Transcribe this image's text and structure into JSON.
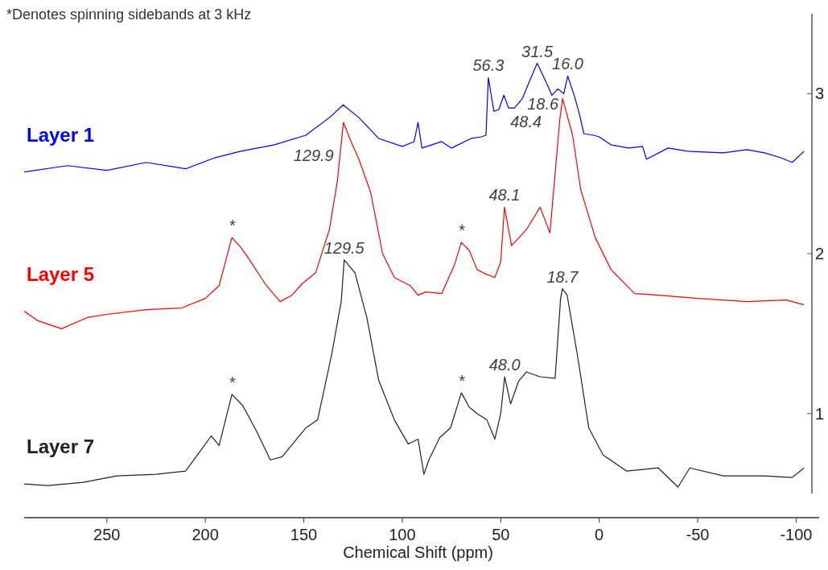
{
  "chart_data": {
    "type": "line",
    "xlabel": "Chemical Shift (ppm)",
    "xlim": [
      292,
      -108
    ],
    "xticks": [
      250,
      200,
      150,
      100,
      50,
      0,
      -50,
      -100
    ],
    "ylim": [
      0.5,
      3.5
    ],
    "yticks": [
      1,
      2,
      3
    ],
    "grid": false,
    "legend": false,
    "marker": "none",
    "line_style": "solid",
    "series": [
      {
        "name": "Layer 1",
        "color": "#0000ff",
        "x": [
          292,
          270,
          250,
          230,
          210,
          195,
          182,
          165,
          149,
          137,
          130,
          122,
          112,
          100,
          94,
          92,
          90,
          80,
          75,
          65,
          60,
          57.5,
          56.3,
          53.5,
          51,
          48.4,
          46,
          43,
          39,
          35,
          31.5,
          26.5,
          24,
          21,
          18,
          16,
          12.7,
          10,
          7.8,
          3,
          0,
          -6,
          -15,
          -22,
          -24,
          -35,
          -45,
          -63,
          -75,
          -84,
          -92,
          -98,
          -104
        ],
        "values": [
          2.51,
          2.55,
          2.52,
          2.57,
          2.53,
          2.6,
          2.64,
          2.68,
          2.74,
          2.85,
          2.93,
          2.85,
          2.72,
          2.67,
          2.7,
          2.82,
          2.66,
          2.7,
          2.66,
          2.72,
          2.73,
          2.74,
          3.1,
          2.89,
          2.9,
          2.99,
          2.91,
          2.91,
          2.97,
          3.09,
          3.19,
          3.06,
          2.99,
          3.03,
          3.0,
          3.11,
          2.99,
          2.87,
          2.75,
          2.74,
          2.73,
          2.68,
          2.66,
          2.67,
          2.59,
          2.66,
          2.64,
          2.63,
          2.65,
          2.63,
          2.6,
          2.57,
          2.64
        ]
      },
      {
        "name": "Layer 5",
        "color": "#ff0000",
        "x": [
          292,
          285,
          273,
          260,
          250,
          230,
          212,
          200,
          193,
          186.5,
          182,
          177.5,
          169,
          162,
          156,
          151,
          144,
          137,
          133,
          129.9,
          126,
          122,
          116,
          110,
          104,
          96,
          92,
          88,
          80,
          73.5,
          70,
          66,
          62,
          59,
          53,
          50,
          48.1,
          44.5,
          37,
          30,
          25,
          20,
          18.6,
          13.5,
          9.4,
          2,
          -6,
          -18,
          -30,
          -50,
          -75,
          -95,
          -104
        ],
        "values": [
          1.64,
          1.58,
          1.53,
          1.6,
          1.62,
          1.65,
          1.66,
          1.72,
          1.8,
          2.1,
          2.04,
          1.96,
          1.8,
          1.7,
          1.74,
          1.81,
          1.88,
          2.15,
          2.45,
          2.82,
          2.7,
          2.59,
          2.38,
          2.0,
          1.85,
          1.8,
          1.74,
          1.76,
          1.75,
          1.93,
          2.07,
          2.02,
          1.9,
          1.88,
          1.85,
          1.95,
          2.29,
          2.05,
          2.15,
          2.29,
          2.13,
          2.84,
          2.97,
          2.74,
          2.4,
          2.1,
          1.9,
          1.75,
          1.74,
          1.72,
          1.7,
          1.71,
          1.68
        ]
      },
      {
        "name": "Layer 7",
        "color": "#222222",
        "x": [
          292,
          280,
          262,
          245,
          225,
          210,
          197,
          193,
          186.5,
          181,
          174,
          167,
          161,
          149,
          143,
          136,
          131,
          129.5,
          124,
          118,
          112,
          104,
          97,
          92,
          89,
          86.5,
          81,
          75.5,
          70,
          66,
          62,
          57,
          53,
          50,
          48,
          45,
          41,
          37,
          30,
          22.4,
          19.6,
          18.7,
          16.3,
          11,
          5.3,
          -2,
          -14,
          -30,
          -40,
          -46,
          -63,
          -84,
          -98,
          -104
        ],
        "values": [
          0.56,
          0.55,
          0.57,
          0.61,
          0.62,
          0.64,
          0.86,
          0.8,
          1.12,
          1.05,
          0.89,
          0.71,
          0.73,
          0.91,
          0.96,
          1.36,
          1.7,
          1.96,
          1.88,
          1.6,
          1.21,
          0.96,
          0.81,
          0.84,
          0.62,
          0.71,
          0.85,
          0.91,
          1.13,
          1.04,
          1.0,
          0.96,
          0.84,
          1.0,
          1.23,
          1.06,
          1.2,
          1.26,
          1.23,
          1.22,
          1.72,
          1.78,
          1.74,
          1.36,
          0.91,
          0.74,
          0.64,
          0.66,
          0.54,
          0.66,
          0.61,
          0.61,
          0.6,
          0.66
        ]
      }
    ],
    "annotations": [
      "*Denotes spinning sidebands at 3 kHz",
      {
        "text": "56.3",
        "x": 56.3,
        "y": 3.1
      },
      {
        "text": "48.4",
        "x": 48.4,
        "y": 2.99
      },
      {
        "text": "31.5",
        "x": 31.5,
        "y": 3.19
      },
      {
        "text": "16.0",
        "x": 16,
        "y": 3.11
      },
      {
        "text": "129.9",
        "x": 129.9,
        "y": 2.82
      },
      {
        "text": "48.1",
        "x": 48.1,
        "y": 2.29
      },
      {
        "text": "18.6",
        "x": 18.6,
        "y": 2.97
      },
      {
        "text": "129.5",
        "x": 129.5,
        "y": 1.96
      },
      {
        "text": "48.0",
        "x": 48,
        "y": 1.23
      },
      {
        "text": "18.7",
        "x": 18.7,
        "y": 1.78
      },
      {
        "text": "*",
        "x": 186.5,
        "y": 2.1
      },
      {
        "text": "*",
        "x": 70,
        "y": 2.07
      },
      {
        "text": "*",
        "x": 186.5,
        "y": 1.12
      },
      {
        "text": "*",
        "x": 70,
        "y": 1.13
      }
    ]
  }
}
